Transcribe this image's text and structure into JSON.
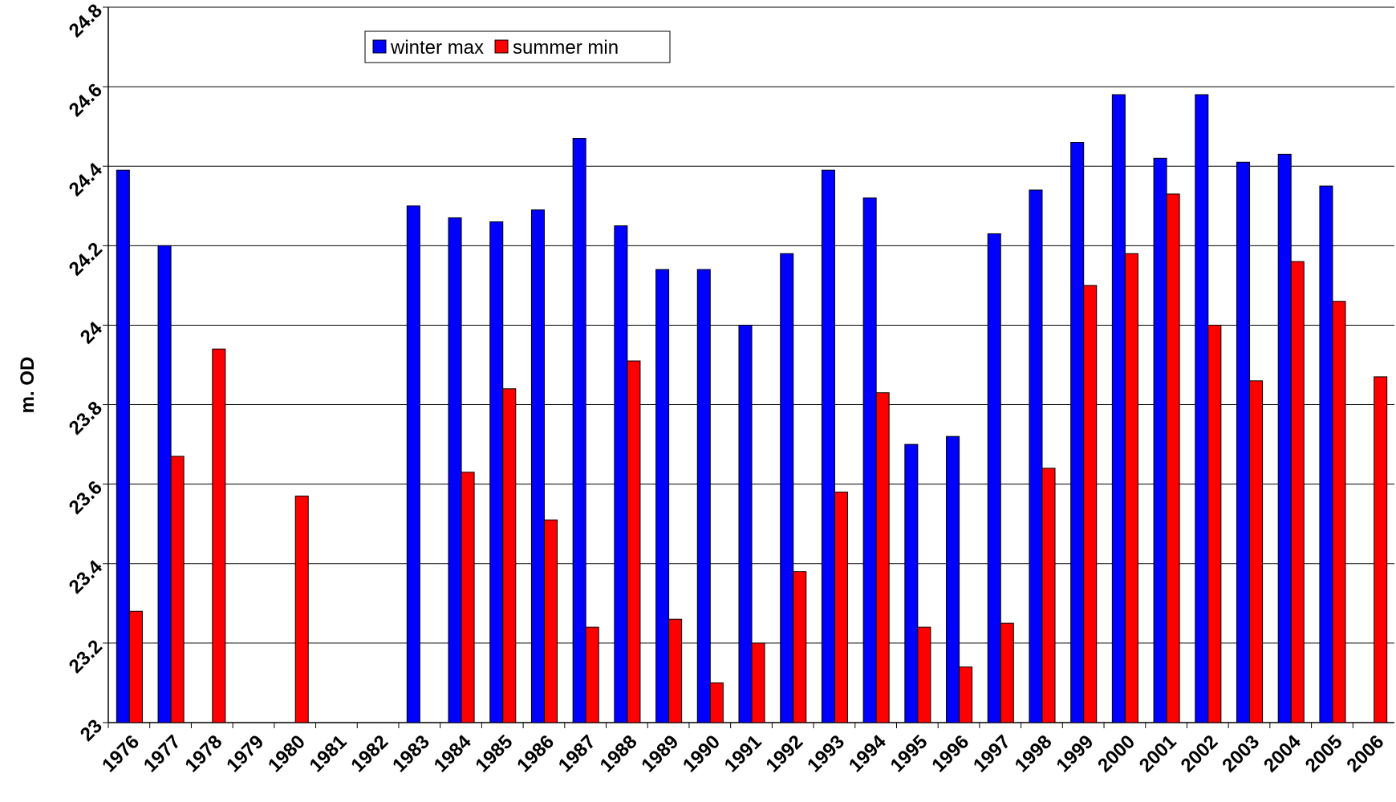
{
  "chart_data": {
    "type": "bar",
    "y_label": "m. OD",
    "categories": [
      "1976",
      "1977",
      "1978",
      "1979",
      "1980",
      "1981",
      "1982",
      "1983",
      "1984",
      "1985",
      "1986",
      "1987",
      "1988",
      "1989",
      "1990",
      "1991",
      "1992",
      "1993",
      "1994",
      "1995",
      "1996",
      "1997",
      "1998",
      "1999",
      "2000",
      "2001",
      "2002",
      "2003",
      "2004",
      "2005",
      "2006"
    ],
    "series": [
      {
        "name": "winter max",
        "color": "#0000ff",
        "values": [
          24.39,
          24.2,
          null,
          null,
          null,
          null,
          null,
          24.3,
          24.27,
          24.26,
          24.29,
          24.47,
          24.25,
          24.14,
          24.14,
          24.0,
          24.18,
          24.39,
          24.32,
          23.7,
          23.72,
          24.23,
          24.34,
          24.46,
          24.58,
          24.42,
          24.58,
          24.41,
          24.43,
          24.35,
          null
        ]
      },
      {
        "name": "summer min",
        "color": "#ff0000",
        "values": [
          23.28,
          23.67,
          23.94,
          null,
          23.57,
          null,
          null,
          null,
          23.63,
          23.84,
          23.51,
          23.24,
          23.91,
          23.26,
          23.1,
          23.2,
          23.38,
          23.58,
          23.83,
          23.24,
          23.14,
          23.25,
          23.64,
          24.1,
          24.18,
          24.33,
          24.0,
          23.86,
          24.16,
          24.06,
          23.87
        ]
      }
    ],
    "ylim": [
      23,
      24.8
    ],
    "yticks": [
      23,
      23.2,
      23.4,
      23.6,
      23.8,
      24,
      24.2,
      24.4,
      24.6,
      24.8
    ],
    "grid": true
  }
}
